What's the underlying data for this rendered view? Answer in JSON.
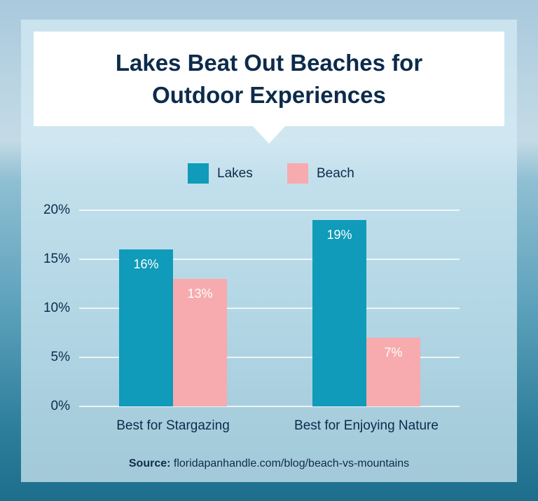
{
  "chart_data": {
    "type": "bar",
    "title": "Lakes Beat Out Beaches for Outdoor Experiences",
    "categories": [
      "Best for Stargazing",
      "Best for Enjoying Nature"
    ],
    "series": [
      {
        "name": "Lakes",
        "color": "#0f9bb9",
        "values": [
          16,
          19
        ],
        "value_labels": [
          "16%",
          "19%"
        ]
      },
      {
        "name": "Beach",
        "color": "#f7abae",
        "values": [
          13,
          7
        ],
        "value_labels": [
          "13%",
          "7%"
        ]
      }
    ],
    "ylim": [
      0,
      20
    ],
    "yticks": [
      {
        "value": 0,
        "label": "0%"
      },
      {
        "value": 5,
        "label": "5%"
      },
      {
        "value": 10,
        "label": "10%"
      },
      {
        "value": 15,
        "label": "15%"
      },
      {
        "value": 20,
        "label": "20%"
      }
    ],
    "grid": true,
    "legend": "top",
    "source_label": "Source:",
    "source": "floridapanhandle.com/blog/beach-vs-mountains"
  }
}
